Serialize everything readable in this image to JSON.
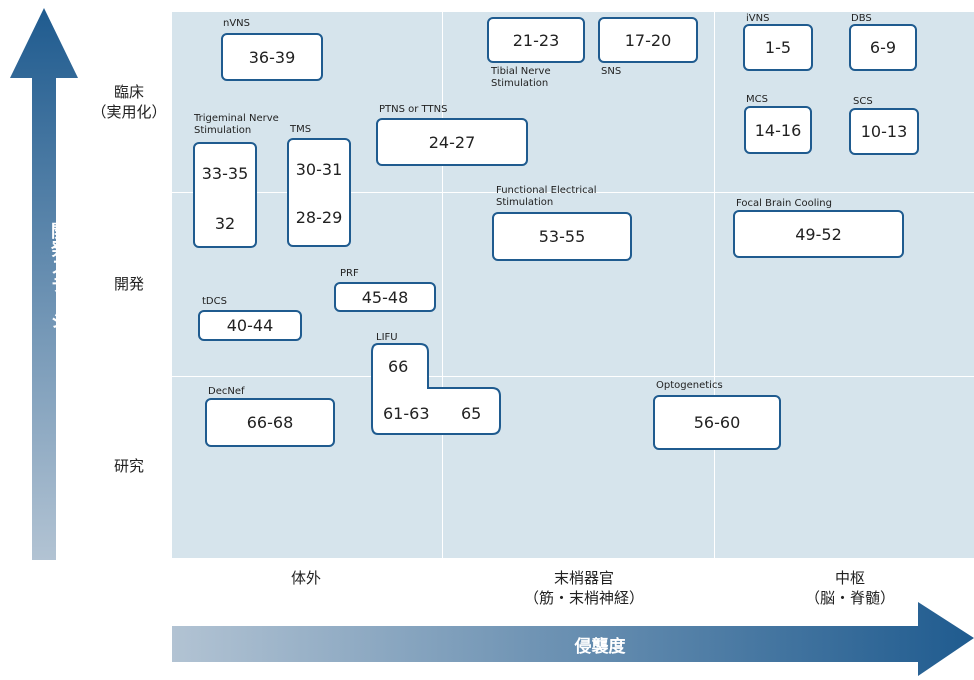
{
  "axis_y": {
    "title": "開発ステージ",
    "levels": [
      "臨床（実用化）",
      "開発",
      "研究"
    ],
    "level_lines": [
      [
        "臨床",
        "（実用化）"
      ],
      [
        "開発"
      ],
      [
        "研究"
      ]
    ]
  },
  "axis_x": {
    "title": "侵襲度",
    "levels": [
      {
        "line1": "体外",
        "line2": ""
      },
      {
        "line1": "末梢器官",
        "line2": "（筋・末梢神経）"
      },
      {
        "line1": "中枢",
        "line2": "（脳・脊髄）"
      }
    ]
  },
  "colors": {
    "plot_bg": "#d6e4ec",
    "box_border": "#1f5b8f",
    "arrow_dark": "#1f5b8f",
    "arrow_light": "#b2c3d3"
  },
  "items": {
    "nvns": {
      "caption": "nVNS",
      "refs": "36-39"
    },
    "tibial": {
      "caption": "Tibial Nerve Stimulation",
      "refs": "21-23"
    },
    "sns": {
      "caption": "SNS",
      "refs": "17-20"
    },
    "ivns": {
      "caption": "iVNS",
      "refs": "1-5"
    },
    "dbs": {
      "caption": "DBS",
      "refs": "6-9"
    },
    "trigeminal": {
      "caption": "Trigeminal Nerve Stimulation",
      "refs_a": "33-35",
      "refs_b": "32"
    },
    "tms": {
      "caption": "TMS",
      "refs_a": "30-31",
      "refs_b": "28-29"
    },
    "ptns": {
      "caption": "PTNS or TTNS",
      "refs": "24-27"
    },
    "mcs": {
      "caption": "MCS",
      "refs": "14-16"
    },
    "scs": {
      "caption": "SCS",
      "refs": "10-13"
    },
    "fes": {
      "caption": "Functional Electrical Stimulation",
      "refs": "53-55"
    },
    "fbc": {
      "caption": "Focal Brain Cooling",
      "refs": "49-52"
    },
    "prf": {
      "caption": "PRF",
      "refs": "45-48"
    },
    "tdcs": {
      "caption": "tDCS",
      "refs": "40-44"
    },
    "lifu": {
      "caption": "LIFU",
      "refs_a": "66",
      "refs_b": "61-63",
      "refs_c": "65"
    },
    "decnef": {
      "caption": "DecNef",
      "refs": "66-68"
    },
    "opto": {
      "caption": "Optogenetics",
      "refs": "56-60"
    }
  }
}
